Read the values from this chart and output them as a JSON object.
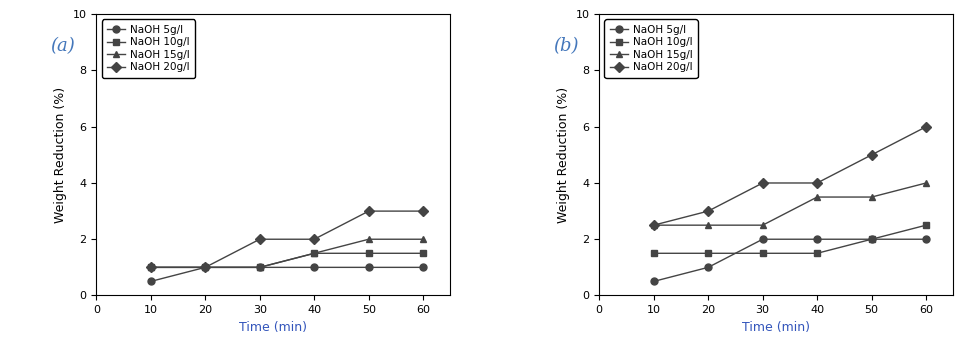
{
  "x": [
    10,
    20,
    30,
    40,
    50,
    60
  ],
  "chart_a": {
    "label": "(a)",
    "series": [
      {
        "label": "NaOH 5g/l",
        "y": [
          0.5,
          1.0,
          1.0,
          1.0,
          1.0,
          1.0
        ],
        "marker": "o"
      },
      {
        "label": "NaOH 10g/l",
        "y": [
          1.0,
          1.0,
          1.0,
          1.5,
          1.5,
          1.5
        ],
        "marker": "s"
      },
      {
        "label": "NaOH 15g/l",
        "y": [
          1.0,
          1.0,
          1.0,
          1.5,
          2.0,
          2.0
        ],
        "marker": "^"
      },
      {
        "label": "NaOH 20g/l",
        "y": [
          1.0,
          1.0,
          2.0,
          2.0,
          3.0,
          3.0
        ],
        "marker": "D"
      }
    ]
  },
  "chart_b": {
    "label": "(b)",
    "series": [
      {
        "label": "NaOH 5g/l",
        "y": [
          0.5,
          1.0,
          2.0,
          2.0,
          2.0,
          2.0
        ],
        "marker": "o"
      },
      {
        "label": "NaOH 10g/l",
        "y": [
          1.5,
          1.5,
          1.5,
          1.5,
          2.0,
          2.5
        ],
        "marker": "s"
      },
      {
        "label": "NaOH 15g/l",
        "y": [
          2.5,
          2.5,
          2.5,
          3.5,
          3.5,
          4.0
        ],
        "marker": "^"
      },
      {
        "label": "NaOH 20g/l",
        "y": [
          2.5,
          3.0,
          4.0,
          4.0,
          5.0,
          6.0
        ],
        "marker": "D"
      }
    ]
  },
  "xlabel": "Time (min)",
  "ylabel": "Weight Reduction (%)",
  "xlim": [
    0,
    65
  ],
  "ylim": [
    0,
    10
  ],
  "xticks": [
    0,
    10,
    20,
    30,
    40,
    50,
    60
  ],
  "yticks": [
    0,
    2,
    4,
    6,
    8,
    10
  ],
  "line_color": "#444444",
  "marker_color": "#444444",
  "markersize": 5,
  "linewidth": 1.0,
  "legend_fontsize": 7.5,
  "axis_label_fontsize": 9,
  "tick_fontsize": 8,
  "panel_label_fontsize": 13,
  "panel_label_color": "#4477bb",
  "xlabel_color": "#3355bb"
}
